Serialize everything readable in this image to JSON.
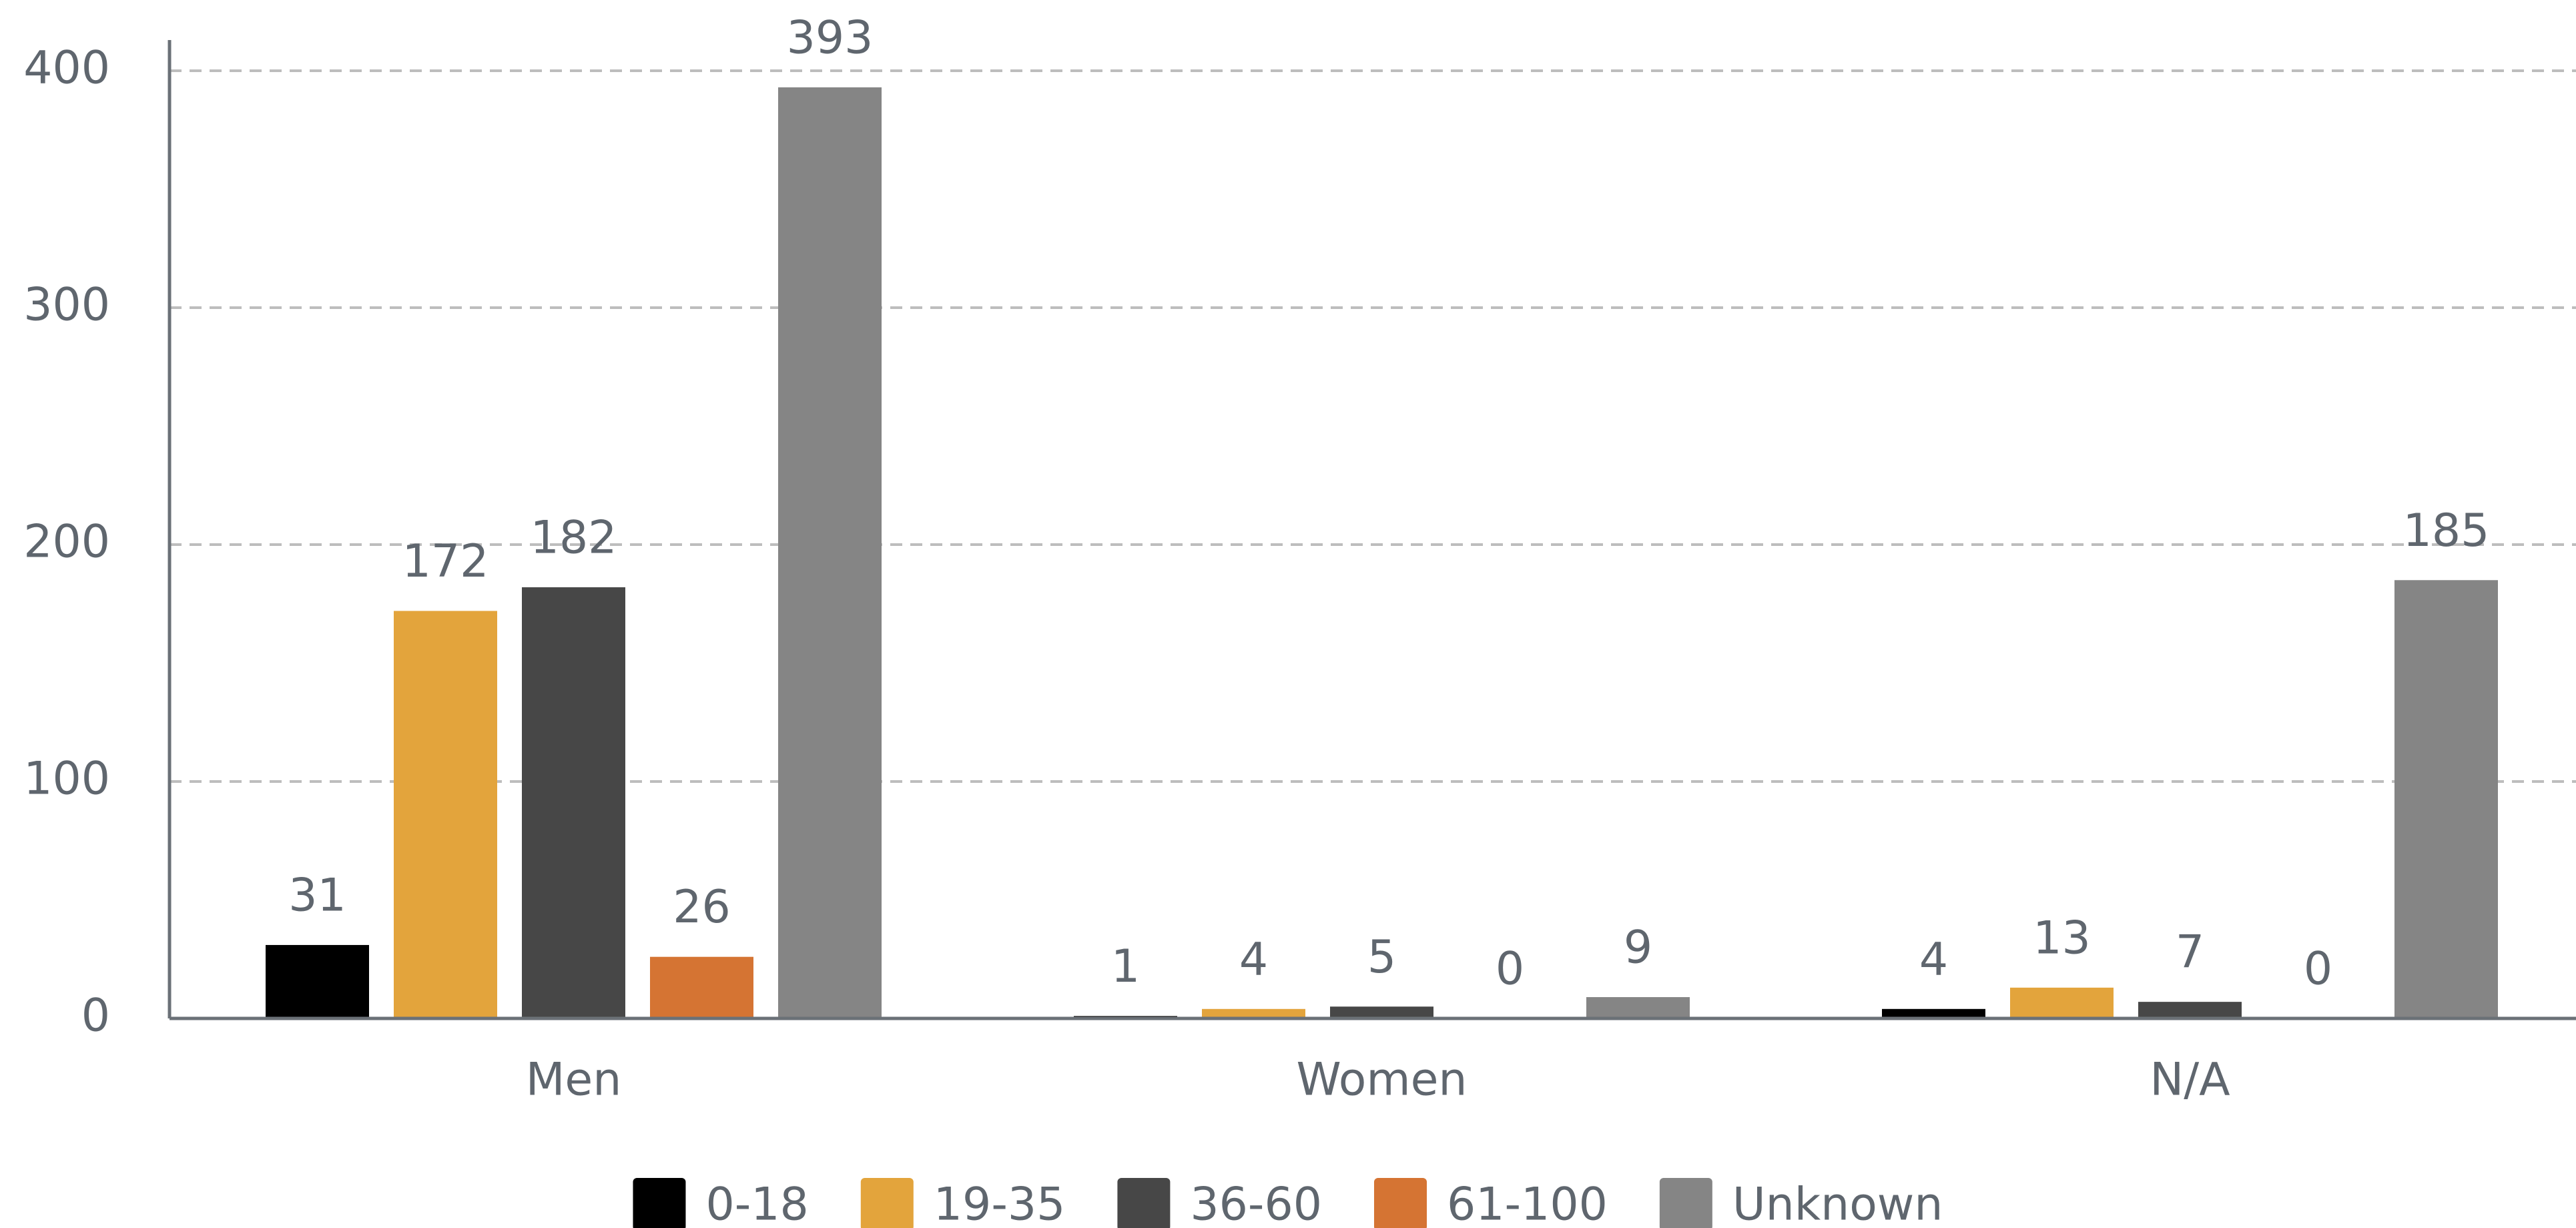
{
  "chart_data": {
    "type": "bar",
    "categories": [
      "Men",
      "Women",
      "N/A"
    ],
    "series": [
      {
        "name": "0-18",
        "color": "#000000",
        "values": [
          31,
          1,
          4
        ]
      },
      {
        "name": "19-35",
        "color": "#e3a43c",
        "values": [
          172,
          4,
          13
        ]
      },
      {
        "name": "36-60",
        "color": "#474747",
        "values": [
          182,
          5,
          7
        ]
      },
      {
        "name": "61-100",
        "color": "#d57433",
        "values": [
          26,
          0,
          0
        ]
      },
      {
        "name": "Unknown",
        "color": "#858585",
        "values": [
          393,
          9,
          185
        ]
      }
    ],
    "ylim": [
      0,
      400
    ],
    "yticks": [
      0,
      100,
      200,
      300,
      400
    ],
    "grid": true,
    "legend": "bottom"
  }
}
